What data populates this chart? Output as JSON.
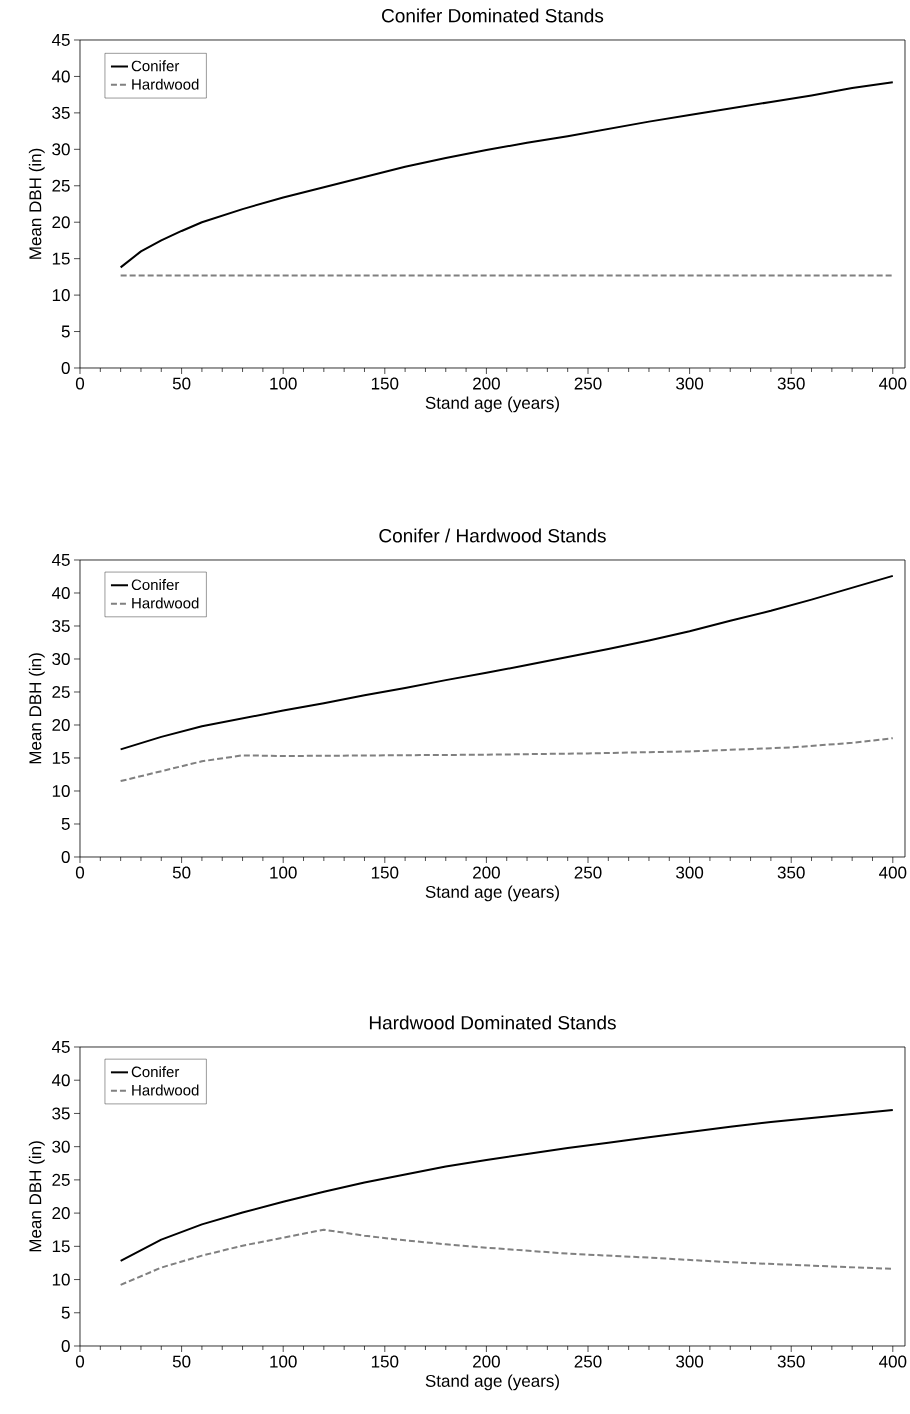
{
  "chart_data": [
    {
      "type": "line",
      "title": "Conifer Dominated Stands",
      "xlabel": "Stand age (years)",
      "ylabel": "Mean DBH (in)",
      "xlim": [
        0,
        406
      ],
      "ylim": [
        0,
        45
      ],
      "xticks": [
        0,
        50,
        100,
        150,
        200,
        250,
        300,
        350,
        400
      ],
      "yticks": [
        0,
        5,
        10,
        15,
        20,
        25,
        30,
        35,
        40,
        45
      ],
      "legend": "top left",
      "series": [
        {
          "name": "Conifer",
          "color": "#000000",
          "line_style": "solid",
          "x": [
            20,
            30,
            40,
            50,
            60,
            80,
            100,
            120,
            140,
            160,
            180,
            200,
            220,
            240,
            260,
            280,
            300,
            320,
            340,
            360,
            380,
            400
          ],
          "values": [
            13.8,
            16.0,
            17.5,
            18.8,
            20.0,
            21.8,
            23.4,
            24.8,
            26.2,
            27.6,
            28.8,
            29.9,
            30.9,
            31.8,
            32.8,
            33.8,
            34.7,
            35.6,
            36.5,
            37.4,
            38.4,
            39.2
          ]
        },
        {
          "name": "Hardwood",
          "color": "#808080",
          "line_style": "dashed",
          "x": [
            20,
            400
          ],
          "values": [
            12.7,
            12.7
          ]
        }
      ]
    },
    {
      "type": "line",
      "title": "Conifer / Hardwood Stands",
      "xlabel": "Stand age (years)",
      "ylabel": "Mean DBH (in)",
      "xlim": [
        0,
        406
      ],
      "ylim": [
        0,
        45
      ],
      "xticks": [
        0,
        50,
        100,
        150,
        200,
        250,
        300,
        350,
        400
      ],
      "yticks": [
        0,
        5,
        10,
        15,
        20,
        25,
        30,
        35,
        40,
        45
      ],
      "legend": "top left",
      "series": [
        {
          "name": "Conifer",
          "color": "#000000",
          "line_style": "solid",
          "x": [
            20,
            40,
            60,
            80,
            100,
            120,
            140,
            160,
            180,
            200,
            220,
            240,
            260,
            280,
            300,
            320,
            340,
            360,
            380,
            400
          ],
          "values": [
            16.3,
            18.2,
            19.8,
            21.0,
            22.2,
            23.3,
            24.5,
            25.6,
            26.8,
            27.9,
            29.1,
            30.3,
            31.5,
            32.8,
            34.2,
            35.8,
            37.3,
            39.0,
            40.8,
            42.6
          ]
        },
        {
          "name": "Hardwood",
          "color": "#808080",
          "line_style": "dashed",
          "x": [
            20,
            40,
            60,
            80,
            100,
            150,
            200,
            250,
            300,
            350,
            380,
            400
          ],
          "values": [
            11.5,
            13.0,
            14.5,
            15.4,
            15.3,
            15.4,
            15.5,
            15.7,
            16.0,
            16.6,
            17.3,
            18.0
          ]
        }
      ]
    },
    {
      "type": "line",
      "title": "Hardwood Dominated Stands",
      "xlabel": "Stand age (years)",
      "ylabel": "Mean DBH (in)",
      "xlim": [
        0,
        406
      ],
      "ylim": [
        0,
        45
      ],
      "xticks": [
        0,
        50,
        100,
        150,
        200,
        250,
        300,
        350,
        400
      ],
      "yticks": [
        0,
        5,
        10,
        15,
        20,
        25,
        30,
        35,
        40,
        45
      ],
      "legend": "top left",
      "series": [
        {
          "name": "Conifer",
          "color": "#000000",
          "line_style": "solid",
          "x": [
            20,
            40,
            60,
            80,
            100,
            120,
            140,
            160,
            180,
            200,
            220,
            240,
            260,
            280,
            300,
            320,
            340,
            360,
            380,
            400
          ],
          "values": [
            12.8,
            16.0,
            18.3,
            20.1,
            21.7,
            23.2,
            24.6,
            25.8,
            27.0,
            28.0,
            28.9,
            29.8,
            30.6,
            31.4,
            32.2,
            33.0,
            33.7,
            34.3,
            34.9,
            35.5
          ]
        },
        {
          "name": "Hardwood",
          "color": "#808080",
          "line_style": "dashed",
          "x": [
            20,
            40,
            60,
            80,
            100,
            120,
            140,
            160,
            180,
            200,
            240,
            280,
            320,
            360,
            400
          ],
          "values": [
            9.2,
            11.8,
            13.6,
            15.1,
            16.3,
            17.5,
            16.6,
            15.9,
            15.3,
            14.8,
            13.9,
            13.3,
            12.6,
            12.1,
            11.6
          ]
        }
      ]
    }
  ]
}
